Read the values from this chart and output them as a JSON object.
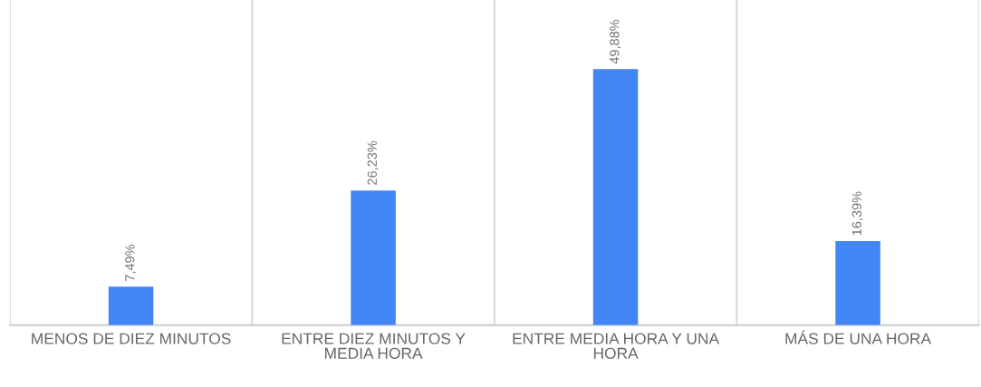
{
  "chart_data": {
    "type": "bar",
    "categories": [
      "MENOS DE DIEZ MINUTOS",
      "ENTRE DIEZ MINUTOS Y MEDIA HORA",
      "ENTRE MEDIA HORA Y UNA HORA",
      "MÁS DE UNA HORA"
    ],
    "values": [
      7.49,
      26.23,
      49.88,
      16.39
    ],
    "value_labels": [
      "7,49%",
      "26,23%",
      "49,88%",
      "16,39%"
    ],
    "color": "#4285f4",
    "grid": "x",
    "legend": false
  }
}
